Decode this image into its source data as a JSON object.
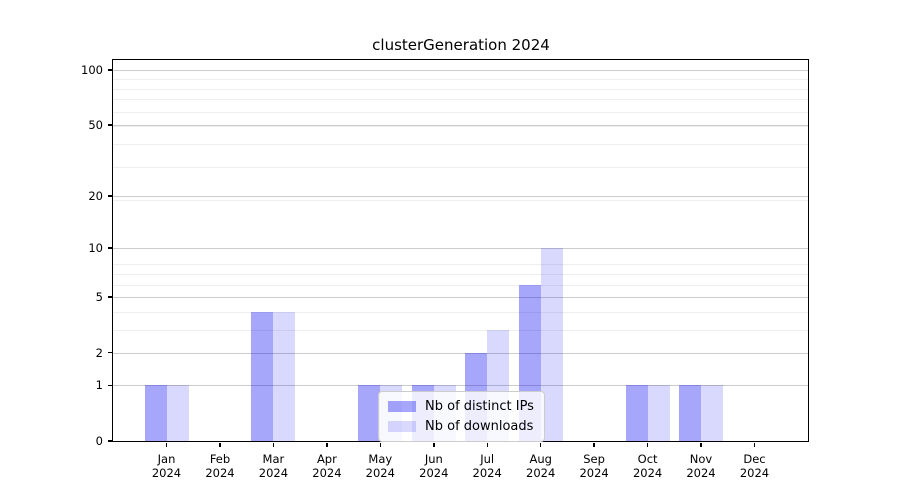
{
  "title": "clusterGeneration 2024",
  "chart_data": {
    "type": "bar",
    "title": "clusterGeneration 2024",
    "categories": [
      {
        "month": "Jan",
        "year": "2024"
      },
      {
        "month": "Feb",
        "year": "2024"
      },
      {
        "month": "Mar",
        "year": "2024"
      },
      {
        "month": "Apr",
        "year": "2024"
      },
      {
        "month": "May",
        "year": "2024"
      },
      {
        "month": "Jun",
        "year": "2024"
      },
      {
        "month": "Jul",
        "year": "2024"
      },
      {
        "month": "Aug",
        "year": "2024"
      },
      {
        "month": "Sep",
        "year": "2024"
      },
      {
        "month": "Oct",
        "year": "2024"
      },
      {
        "month": "Nov",
        "year": "2024"
      },
      {
        "month": "Dec",
        "year": "2024"
      }
    ],
    "series": [
      {
        "name": "Nb of distinct IPs",
        "color": "#a8a8fa",
        "rgba": "rgba(0,0,240,0.35)",
        "values": [
          1,
          0,
          4,
          0,
          1,
          1,
          2,
          6,
          0,
          1,
          1,
          0
        ]
      },
      {
        "name": "Nb of downloads",
        "color": "#dadafa",
        "rgba": "rgba(0,0,240,0.15)",
        "values": [
          1,
          0,
          4,
          0,
          1,
          1,
          3,
          10,
          0,
          1,
          1,
          0
        ]
      }
    ],
    "y_axis": {
      "ticks": [
        0,
        1,
        2,
        5,
        10,
        20,
        50,
        100
      ],
      "scale": "log10(value+1)",
      "ylim": [
        0,
        113
      ]
    },
    "grid": {
      "major_color": "#cccccc",
      "minor_color": "#eeeeee",
      "minor_positions_v_plus_1": [
        2,
        3,
        4,
        5,
        6,
        7,
        8,
        9,
        20,
        30,
        40,
        50,
        60,
        70,
        80,
        90
      ]
    },
    "legend": {
      "position": "inside-bottom-center"
    }
  }
}
